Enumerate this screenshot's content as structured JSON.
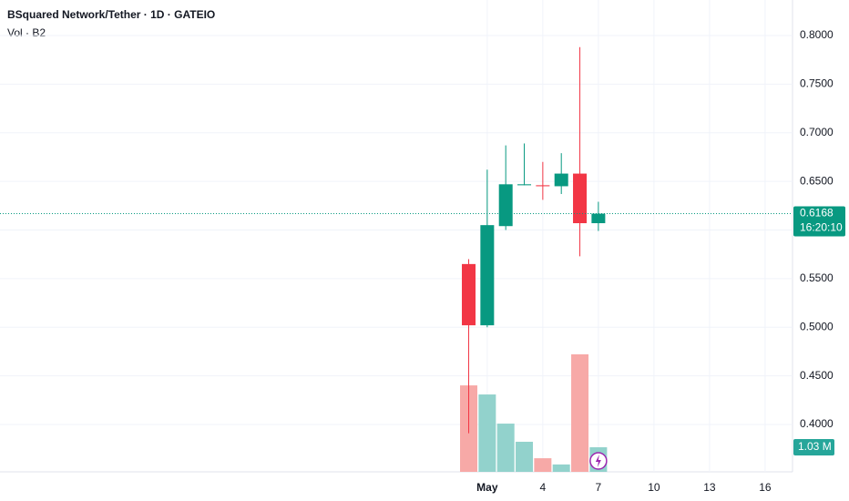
{
  "chart_data": {
    "type": "candlestick",
    "title": "BSquared Network/Tether · 1D · GATEIO",
    "volume_title": "Vol · B2",
    "x": [
      0,
      1,
      2,
      3,
      4,
      5,
      6,
      7
    ],
    "xlim": [
      -25.3,
      17.48
    ],
    "xticks": [
      {
        "value": 1,
        "label": "May"
      },
      4,
      7,
      10,
      13,
      16
    ],
    "open": [
      0.565,
      0.502,
      0.604,
      0.646,
      0.646,
      0.645,
      0.658,
      0.607
    ],
    "high": [
      0.57,
      0.662,
      0.687,
      0.689,
      0.67,
      0.679,
      0.788,
      0.629
    ],
    "low": [
      0.391,
      0.5,
      0.6,
      0.646,
      0.631,
      0.637,
      0.573,
      0.599
    ],
    "close": [
      0.502,
      0.605,
      0.647,
      0.647,
      0.645,
      0.658,
      0.607,
      0.6168
    ],
    "volume": [
      3620000,
      3240000,
      2020000,
      1260000,
      570000,
      310000,
      4920000,
      1030000
    ],
    "volume_last_label": "1.03 M",
    "last_price": 0.6168,
    "countdown": "16:20:10",
    "ylim": [
      0.3513,
      0.8365
    ],
    "yticks": [
      {
        "value": 0.4,
        "label": "0.4000"
      },
      {
        "value": 0.45,
        "label": "0.4500"
      },
      {
        "value": 0.5,
        "label": "0.5000"
      },
      {
        "value": 0.55,
        "label": "0.5500"
      },
      {
        "value": 0.6,
        "label": "0.6000"
      },
      {
        "value": 0.65,
        "label": "0.6500"
      },
      {
        "value": 0.7,
        "label": "0.7000"
      },
      {
        "value": 0.75,
        "label": "0.7500"
      },
      {
        "value": 0.8,
        "label": "0.8000"
      }
    ],
    "grid": true,
    "up_color": "#089981",
    "down_color": "#f23645",
    "volume_up_color": "#92d2cc",
    "volume_down_color": "#f7a9a7"
  }
}
